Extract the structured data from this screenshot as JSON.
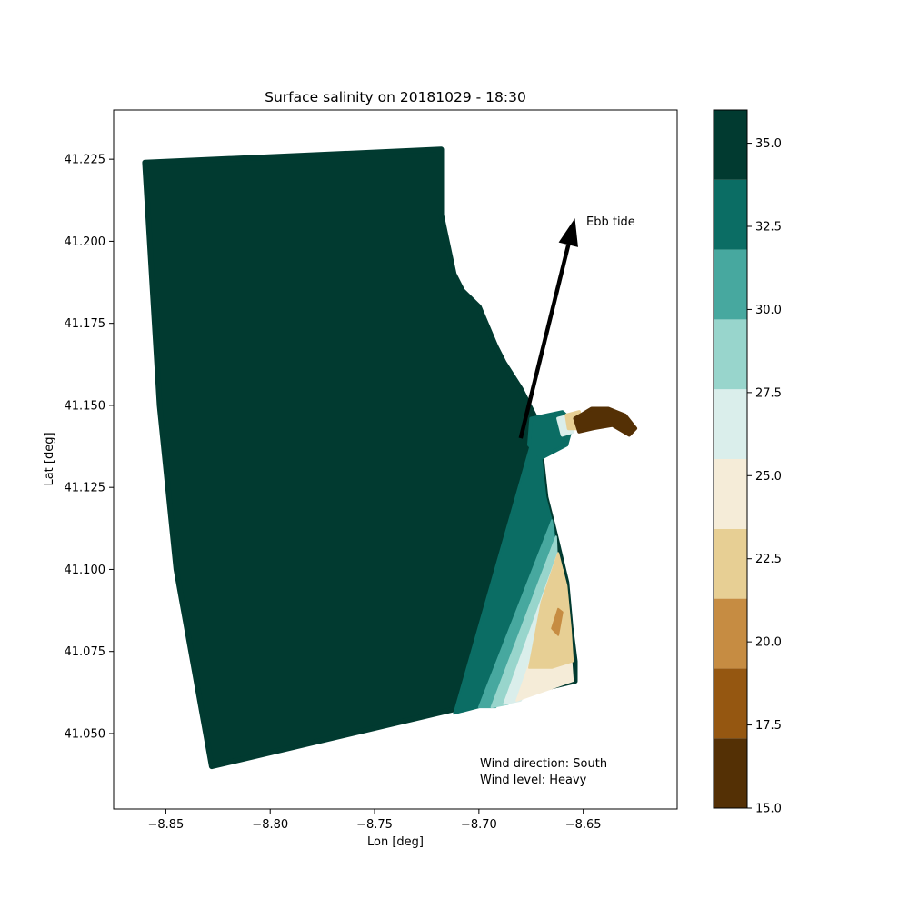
{
  "chart_data": {
    "type": "scatter",
    "title": "Surface salinity on 20181029 - 18:30",
    "xlabel": "Lon [deg]",
    "ylabel": "Lat [deg]",
    "xlim": [
      -8.875,
      -8.605
    ],
    "ylim": [
      41.027,
      41.24
    ],
    "x_ticks": [
      -8.85,
      -8.8,
      -8.75,
      -8.7,
      -8.65
    ],
    "x_tick_labels": [
      "−8.85",
      "−8.80",
      "−8.75",
      "−8.70",
      "−8.65"
    ],
    "y_ticks": [
      41.05,
      41.075,
      41.1,
      41.125,
      41.15,
      41.175,
      41.2,
      41.225
    ],
    "y_tick_labels": [
      "41.050",
      "41.075",
      "41.100",
      "41.125",
      "41.150",
      "41.175",
      "41.200",
      "41.225"
    ],
    "grid": false,
    "domain_outline": [
      [
        -8.86,
        41.224
      ],
      [
        -8.718,
        41.228
      ],
      [
        -8.718,
        41.208
      ],
      [
        -8.712,
        41.19
      ],
      [
        -8.708,
        41.185
      ],
      [
        -8.7,
        41.18
      ],
      [
        -8.692,
        41.168
      ],
      [
        -8.688,
        41.163
      ],
      [
        -8.68,
        41.155
      ],
      [
        -8.672,
        41.145
      ],
      [
        -8.668,
        41.122
      ],
      [
        -8.664,
        41.112
      ],
      [
        -8.658,
        41.096
      ],
      [
        -8.656,
        41.082
      ],
      [
        -8.654,
        41.072
      ],
      [
        -8.654,
        41.066
      ],
      [
        -8.828,
        41.04
      ],
      [
        -8.845,
        41.1
      ],
      [
        -8.853,
        41.15
      ]
    ],
    "salinity_bands": [
      {
        "value": 33.0,
        "polygon": [
          [
            -8.712,
            41.056
          ],
          [
            -8.672,
            41.145
          ],
          [
            -8.668,
            41.122
          ],
          [
            -8.664,
            41.112
          ],
          [
            -8.662,
            41.1
          ],
          [
            -8.672,
            41.09
          ],
          [
            -8.688,
            41.072
          ],
          [
            -8.7,
            41.058
          ]
        ]
      },
      {
        "value": 30.0,
        "polygon": [
          [
            -8.7,
            41.058
          ],
          [
            -8.665,
            41.115
          ],
          [
            -8.662,
            41.1
          ],
          [
            -8.662,
            41.085
          ],
          [
            -8.68,
            41.07
          ],
          [
            -8.692,
            41.058
          ]
        ]
      },
      {
        "value": 28.0,
        "polygon": [
          [
            -8.694,
            41.058
          ],
          [
            -8.663,
            41.11
          ],
          [
            -8.662,
            41.095
          ],
          [
            -8.662,
            41.082
          ],
          [
            -8.675,
            41.07
          ],
          [
            -8.686,
            41.059
          ]
        ]
      },
      {
        "value": 26.0,
        "polygon": [
          [
            -8.688,
            41.059
          ],
          [
            -8.662,
            41.105
          ],
          [
            -8.66,
            41.09
          ],
          [
            -8.66,
            41.078
          ],
          [
            -8.672,
            41.068
          ],
          [
            -8.68,
            41.06
          ]
        ]
      },
      {
        "value": 24.0,
        "polygon": [
          [
            -8.682,
            41.06
          ],
          [
            -8.66,
            41.1
          ],
          [
            -8.658,
            41.09
          ],
          [
            -8.656,
            41.075
          ],
          [
            -8.655,
            41.066
          ]
        ]
      },
      {
        "value": 22.5,
        "polygon": [
          [
            -8.676,
            41.07
          ],
          [
            -8.67,
            41.09
          ],
          [
            -8.662,
            41.105
          ],
          [
            -8.658,
            41.095
          ],
          [
            -8.656,
            41.082
          ],
          [
            -8.655,
            41.072
          ],
          [
            -8.665,
            41.07
          ]
        ]
      },
      {
        "value": 20.0,
        "polygon": [
          [
            -8.665,
            41.082
          ],
          [
            -8.662,
            41.088
          ],
          [
            -8.66,
            41.087
          ],
          [
            -8.662,
            41.08
          ]
        ]
      }
    ],
    "estuary": [
      {
        "value": 33.0,
        "polygon": [
          [
            -8.675,
            41.146
          ],
          [
            -8.66,
            41.148
          ],
          [
            -8.655,
            41.145
          ],
          [
            -8.658,
            41.138
          ],
          [
            -8.67,
            41.134
          ],
          [
            -8.676,
            41.138
          ]
        ]
      },
      {
        "value": 27.0,
        "polygon": [
          [
            -8.662,
            41.146
          ],
          [
            -8.656,
            41.147
          ],
          [
            -8.655,
            41.142
          ],
          [
            -8.66,
            41.141
          ]
        ]
      },
      {
        "value": 22.0,
        "polygon": [
          [
            -8.658,
            41.147
          ],
          [
            -8.652,
            41.148
          ],
          [
            -8.652,
            41.143
          ],
          [
            -8.657,
            41.143
          ]
        ]
      },
      {
        "value": 16.0,
        "polygon": [
          [
            -8.654,
            41.146
          ],
          [
            -8.646,
            41.149
          ],
          [
            -8.638,
            41.149
          ],
          [
            -8.63,
            41.147
          ],
          [
            -8.625,
            41.143
          ],
          [
            -8.628,
            41.141
          ],
          [
            -8.636,
            41.144
          ],
          [
            -8.645,
            41.143
          ],
          [
            -8.652,
            41.142
          ]
        ]
      }
    ],
    "arrow": {
      "start": [
        -8.68,
        41.14
      ],
      "end": [
        -8.654,
        41.207
      ],
      "label": "Ebb tide"
    },
    "colorbar": {
      "min": 15.0,
      "max": 36.0,
      "levels": [
        15.0,
        17.1,
        19.2,
        21.3,
        23.4,
        25.5,
        27.6,
        29.7,
        31.8,
        33.9,
        36.0
      ],
      "colors": [
        "#543005",
        "#8c510a",
        "#bf812d",
        "#dfc27d",
        "#f6e8c3",
        "#dceeeb",
        "#c7eae5",
        "#80cdc1",
        "#35978f",
        "#01665e",
        "#003c30"
      ],
      "band_colors": [
        "#543005",
        "#955711",
        "#c68c42",
        "#e7cf94",
        "#f5ecd8",
        "#daeeeb",
        "#98d5cc",
        "#47a89f",
        "#0b6d64",
        "#013a30"
      ],
      "ticks": [
        15.0,
        17.5,
        20.0,
        22.5,
        25.0,
        27.5,
        30.0,
        32.5,
        35.0
      ],
      "tick_labels": [
        "15.0",
        "17.5",
        "20.0",
        "22.5",
        "25.0",
        "27.5",
        "30.0",
        "32.5",
        "35.0"
      ]
    }
  },
  "annotations": {
    "wind_direction": "Wind direction: South",
    "wind_level": "Wind level: Heavy"
  }
}
